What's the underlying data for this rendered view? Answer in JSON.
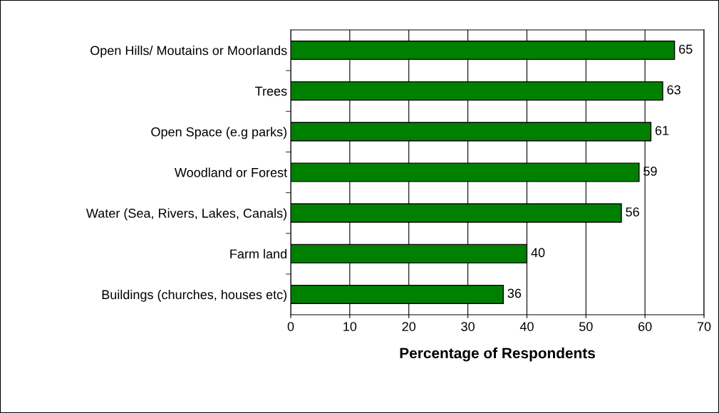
{
  "chart_data": {
    "type": "bar",
    "orientation": "horizontal",
    "xlabel": "Percentage of Respondents",
    "categories": [
      "Open Hills/ Moutains or Moorlands",
      "Trees",
      "Open Space (e.g parks)",
      "Woodland or Forest",
      "Water (Sea, Rivers, Lakes, Canals)",
      "Farm land",
      "Buildings (churches, houses etc)"
    ],
    "values": [
      65,
      63,
      61,
      59,
      56,
      40,
      36
    ],
    "color": "#008000",
    "xlim": [
      0,
      70
    ],
    "xticks": [
      0,
      10,
      20,
      30,
      40,
      50,
      60,
      70
    ],
    "grid": "x",
    "data_labels": true
  }
}
